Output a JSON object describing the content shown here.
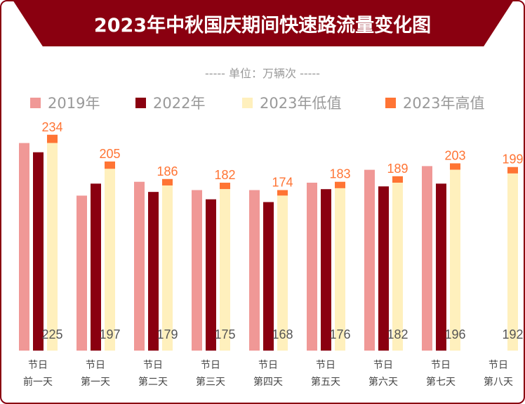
{
  "chart_data": {
    "type": "bar",
    "title": "2023年中秋国庆期间快速路流量变化图",
    "subtitle": "----- 单位：万辆次 -----",
    "categories": [
      [
        "节日",
        "前一天"
      ],
      [
        "节日",
        "第一天"
      ],
      [
        "节日",
        "第二天"
      ],
      [
        "节日",
        "第三天"
      ],
      [
        "节日",
        "第四天"
      ],
      [
        "节日",
        "第五天"
      ],
      [
        "节日",
        "第六天"
      ],
      [
        "节日",
        "第七天"
      ],
      [
        "节日",
        "第八天"
      ]
    ],
    "ylim": [
      0,
      234
    ],
    "grid": false,
    "legend_position": "top",
    "series": [
      {
        "name": "2019年",
        "color": "#f09896",
        "values": [
          225,
          168,
          183,
          174,
          174,
          182,
          196,
          200,
          null
        ]
      },
      {
        "name": "2022年",
        "color": "#8a0010",
        "values": [
          215,
          181,
          172,
          164,
          161,
          175,
          178,
          181,
          null
        ]
      },
      {
        "name": "2023年低值",
        "color": "#fff0bd",
        "values": [
          225,
          197,
          179,
          175,
          168,
          176,
          182,
          196,
          192
        ]
      },
      {
        "name": "2023年高值",
        "color": "#ff7434",
        "values": [
          234,
          205,
          186,
          182,
          174,
          183,
          189,
          203,
          199
        ]
      }
    ]
  }
}
